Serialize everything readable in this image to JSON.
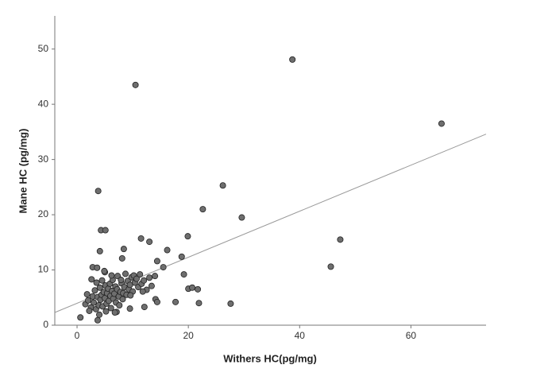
{
  "chart_data": {
    "type": "scatter",
    "x_label": "Withers HC(pg/mg)",
    "y_label": "Mane HC (pg/mg)",
    "xlim": [
      -4,
      73.5
    ],
    "ylim": [
      0,
      56
    ],
    "xticks": [
      0,
      20,
      40,
      60
    ],
    "yticks": [
      0,
      10,
      20,
      30,
      40,
      50
    ],
    "color": "#6e6e6e",
    "fit_line": {
      "x": [
        -4,
        73.5
      ],
      "y": [
        2.3,
        34.6
      ],
      "color": "#999999"
    },
    "x": [
      10.5,
      38.7,
      65.5,
      3.8,
      26.2,
      22.6,
      29.6,
      19.9,
      4.3,
      5.1,
      11.5,
      13.0,
      47.3,
      45.6,
      27.6,
      16.2,
      14.4,
      18.8,
      15.5,
      19.2,
      20.0,
      20.7,
      21.7,
      21.9,
      17.7,
      14.1,
      14.4,
      12.1,
      9.5,
      4.1,
      8.4,
      8.1,
      2.8,
      5.0,
      3.7,
      0.6,
      7.1,
      1.5,
      2.0,
      2.5,
      2.8,
      3.0,
      3.2,
      3.4,
      3.5,
      3.7,
      3.9,
      4.1,
      4.2,
      4.4,
      4.5,
      4.6,
      4.8,
      5.0,
      5.1,
      5.3,
      5.4,
      5.6,
      5.7,
      5.9,
      6.0,
      6.1,
      6.3,
      6.4,
      6.5,
      6.7,
      6.9,
      7.0,
      7.2,
      7.3,
      7.5,
      7.6,
      7.8,
      8.0,
      8.2,
      8.3,
      8.5,
      8.7,
      8.9,
      9.1,
      9.3,
      9.5,
      9.8,
      10.0,
      10.2,
      10.4,
      10.7,
      11.0,
      11.3,
      11.6,
      12.0,
      12.5,
      13.0,
      13.4,
      14.0,
      2.2,
      4.0,
      5.2,
      6.8,
      3.6,
      4.9,
      6.2,
      7.9,
      1.8,
      2.6,
      11.8,
      9.6
    ],
    "values": [
      43.5,
      48.1,
      36.5,
      24.3,
      25.3,
      21.0,
      19.5,
      16.1,
      17.2,
      17.2,
      15.7,
      15.1,
      15.5,
      10.6,
      3.9,
      13.6,
      11.6,
      12.4,
      10.5,
      9.2,
      6.6,
      6.8,
      6.5,
      4.0,
      4.2,
      4.7,
      4.2,
      3.3,
      3.0,
      13.4,
      13.8,
      12.1,
      10.5,
      9.6,
      0.9,
      1.4,
      2.4,
      3.8,
      4.5,
      3.2,
      5.2,
      4.1,
      6.3,
      2.9,
      7.7,
      5.1,
      3.6,
      6.8,
      4.6,
      5.5,
      8.1,
      3.4,
      6.0,
      4.9,
      7.2,
      3.9,
      5.8,
      6.6,
      4.4,
      7.5,
      5.3,
      3.1,
      6.2,
      8.2,
      4.8,
      5.7,
      7.0,
      4.1,
      6.5,
      8.9,
      5.2,
      3.6,
      6.0,
      7.6,
      4.7,
      5.8,
      6.9,
      9.3,
      5.5,
      8.0,
      6.5,
      7.3,
      8.7,
      6.1,
      9.0,
      7.7,
      8.4,
      6.9,
      9.2,
      7.5,
      8.1,
      6.4,
      8.6,
      7.1,
      8.9,
      2.6,
      1.9,
      2.5,
      2.3,
      10.4,
      9.8,
      9.0,
      8.2,
      5.6,
      8.3,
      6.1,
      5.4
    ]
  }
}
